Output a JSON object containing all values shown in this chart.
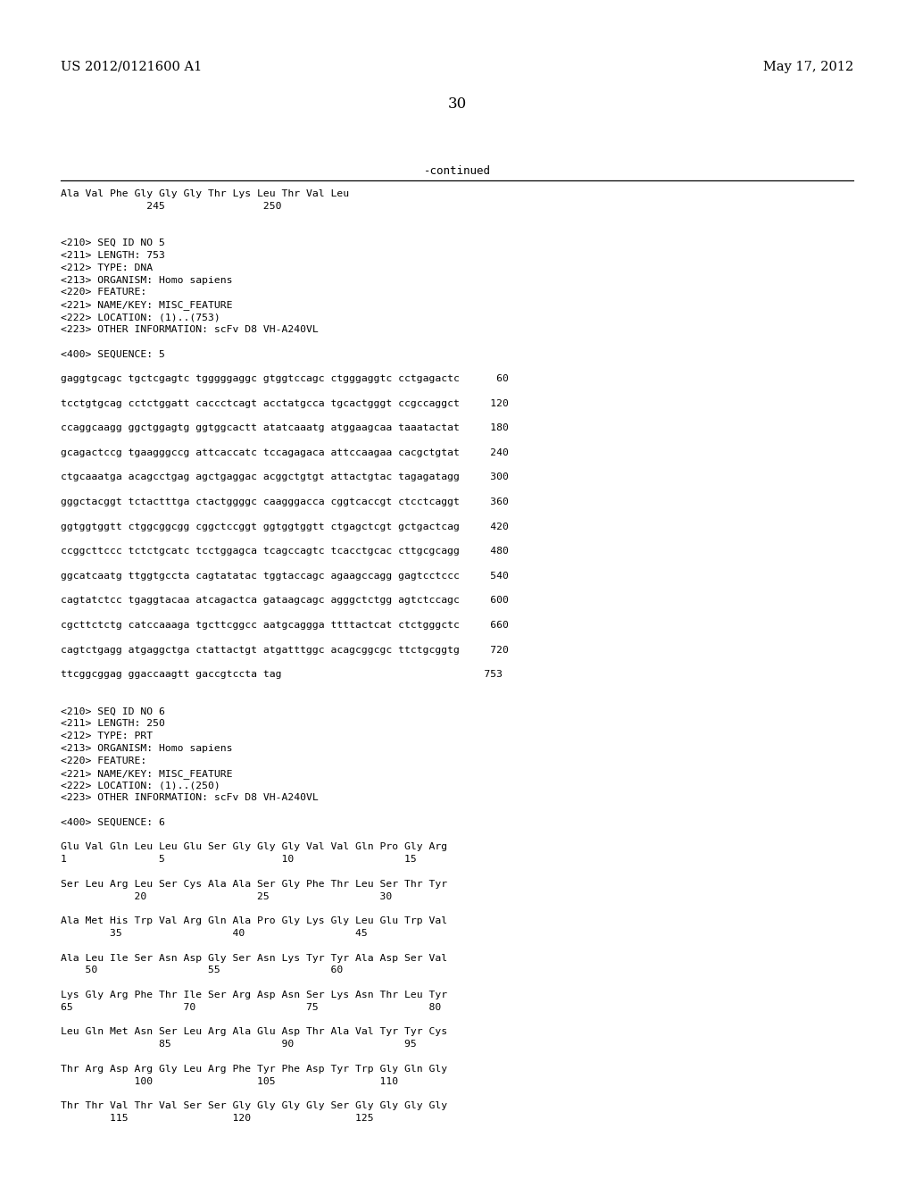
{
  "header_left": "US 2012/0121600 A1",
  "header_right": "May 17, 2012",
  "page_number": "30",
  "continued_text": "-continued",
  "background_color": "#ffffff",
  "text_color": "#000000",
  "content_lines": [
    "Ala Val Phe Gly Gly Gly Thr Lys Leu Thr Val Leu",
    "              245                250",
    "",
    "",
    "<210> SEQ ID NO 5",
    "<211> LENGTH: 753",
    "<212> TYPE: DNA",
    "<213> ORGANISM: Homo sapiens",
    "<220> FEATURE:",
    "<221> NAME/KEY: MISC_FEATURE",
    "<222> LOCATION: (1)..(753)",
    "<223> OTHER INFORMATION: scFv D8 VH-A240VL",
    "",
    "<400> SEQUENCE: 5",
    "",
    "gaggtgcagc tgctcgagtc tgggggaggc gtggtccagc ctgggaggtc cctgagactc      60",
    "",
    "tcctgtgcag cctctggatt caccctcagt acctatgcca tgcactgggt ccgccaggct     120",
    "",
    "ccaggcaagg ggctggagtg ggtggcactt atatcaaatg atggaagcaa taaatactat     180",
    "",
    "gcagactccg tgaagggccg attcaccatc tccagagaca attccaagaa cacgctgtat     240",
    "",
    "ctgcaaatga acagcctgag agctgaggac acggctgtgt attactgtac tagagatagg     300",
    "",
    "gggctacggt tctactttga ctactggggc caagggacca cggtcaccgt ctcctcaggt     360",
    "",
    "ggtggtggtt ctggcggcgg cggctccggt ggtggtggtt ctgagctcgt gctgactcag     420",
    "",
    "ccggcttccc tctctgcatc tcctggagca tcagccagtc tcacctgcac cttgcgcagg     480",
    "",
    "ggcatcaatg ttggtgccta cagtatatac tggtaccagc agaagccagg gagtcctccc     540",
    "",
    "cagtatctcc tgaggtacaa atcagactca gataagcagc agggctctgg agtctccagc     600",
    "",
    "cgcttctctg catccaaaga tgcttcggcc aatgcaggga ttttactcat ctctgggctc     660",
    "",
    "cagtctgagg atgaggctga ctattactgt atgatttggc acagcggcgc ttctgcggtg     720",
    "",
    "ttcggcggag ggaccaagtt gaccgtccta tag                                 753",
    "",
    "",
    "<210> SEQ ID NO 6",
    "<211> LENGTH: 250",
    "<212> TYPE: PRT",
    "<213> ORGANISM: Homo sapiens",
    "<220> FEATURE:",
    "<221> NAME/KEY: MISC_FEATURE",
    "<222> LOCATION: (1)..(250)",
    "<223> OTHER INFORMATION: scFv D8 VH-A240VL",
    "",
    "<400> SEQUENCE: 6",
    "",
    "Glu Val Gln Leu Leu Glu Ser Gly Gly Gly Val Val Gln Pro Gly Arg",
    "1               5                   10                  15",
    "",
    "Ser Leu Arg Leu Ser Cys Ala Ala Ser Gly Phe Thr Leu Ser Thr Tyr",
    "            20                  25                  30",
    "",
    "Ala Met His Trp Val Arg Gln Ala Pro Gly Lys Gly Leu Glu Trp Val",
    "        35                  40                  45",
    "",
    "Ala Leu Ile Ser Asn Asp Gly Ser Asn Lys Tyr Tyr Ala Asp Ser Val",
    "    50                  55                  60",
    "",
    "Lys Gly Arg Phe Thr Ile Ser Arg Asp Asn Ser Lys Asn Thr Leu Tyr",
    "65                  70                  75                  80",
    "",
    "Leu Gln Met Asn Ser Leu Arg Ala Glu Asp Thr Ala Val Tyr Tyr Cys",
    "                85                  90                  95",
    "",
    "Thr Arg Asp Arg Gly Leu Arg Phe Tyr Phe Asp Tyr Trp Gly Gln Gly",
    "            100                 105                 110",
    "",
    "Thr Thr Val Thr Val Ser Ser Gly Gly Gly Gly Ser Gly Gly Gly Gly",
    "        115                 120                 125"
  ]
}
